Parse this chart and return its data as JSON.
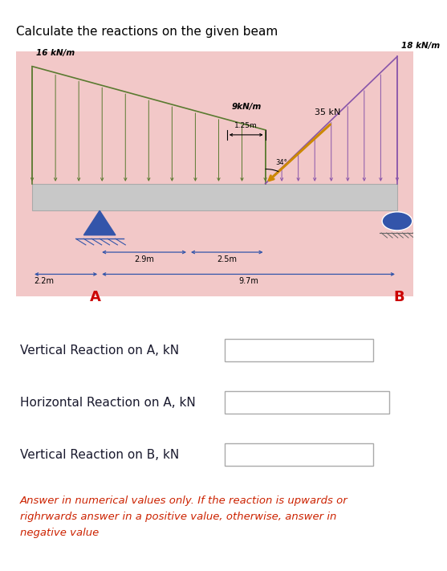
{
  "title": "Calculate the reactions on the given beam",
  "bg_color": "#f2c8c8",
  "beam_fc": "#c8c8c8",
  "beam_ec": "#aaaaaa",
  "left_load_color": "#5a7a30",
  "right_load_color": "#8855aa",
  "point_load_color": "#cc8800",
  "support_A_color": "#3355aa",
  "support_B_color": "#3355aa",
  "dim_color": "#3355aa",
  "label_A_color": "#cc0000",
  "label_B_color": "#cc0000",
  "load_left_16": "16 kN/m",
  "load_right_18": "18 kN/m",
  "load_mid_9": "9kN/m",
  "load_point": "35 kN",
  "angle_label": "34°",
  "dim_22": "2.2m",
  "dim_29": "2.9m",
  "dim_25": "2.5m",
  "dim_125": "1.25m",
  "dim_97": "9.7m",
  "label_A": "A",
  "label_B": "B",
  "q1_label": "Vertical Reaction on A, kN",
  "q2_label": "Horizontal Reaction on A, kN",
  "q3_label": "Vertical Reaction on B, kN",
  "answer_text": "Answer in numerical values only. If the reaction is upwards or\nrighrwards answer in a positive value, otherwise, answer in\nnegative value",
  "answer_color": "#cc2200",
  "fig_w": 5.15,
  "fig_h": 6.92
}
